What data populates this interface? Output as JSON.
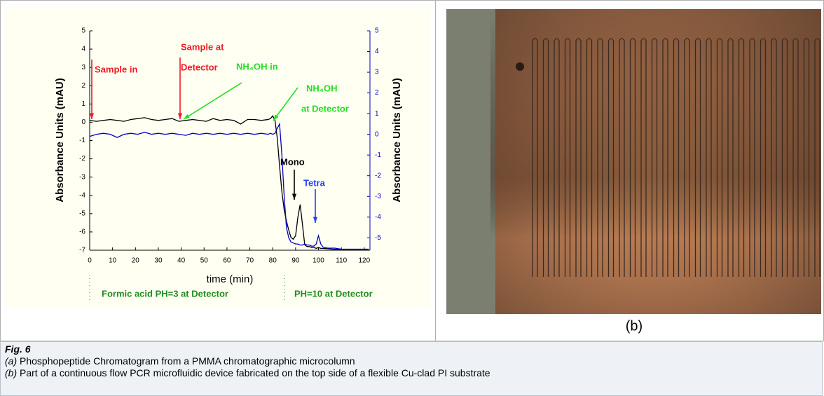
{
  "chart_data": {
    "type": "line",
    "x_label": "time (min)",
    "y_label": "Absorbance Units (mAU)",
    "y2_label": "Absorbance Units (mAU)",
    "x": [
      0,
      3,
      6,
      9,
      12,
      15,
      18,
      21,
      24,
      27,
      30,
      33,
      36,
      39,
      42,
      45,
      48,
      51,
      54,
      57,
      60,
      63,
      66,
      69,
      72,
      75,
      78,
      79,
      80,
      81,
      82,
      83,
      84,
      85,
      86,
      87,
      88,
      89,
      90,
      91,
      92,
      93,
      94,
      95,
      96,
      97,
      98,
      99,
      100,
      101,
      102,
      104,
      107,
      110,
      113,
      116,
      119,
      122
    ],
    "series": [
      {
        "color": "#000000",
        "values": [
          0.1,
          0.05,
          0.1,
          0.15,
          0.1,
          0.05,
          0.15,
          0.2,
          0.25,
          0.15,
          0.1,
          0.15,
          0.2,
          0.05,
          0.1,
          0.15,
          0.1,
          0.05,
          0.2,
          0.1,
          0.15,
          0.1,
          -0.1,
          0.15,
          0.15,
          0.1,
          0.15,
          0.2,
          0.35,
          0.1,
          -0.9,
          -2.4,
          -3.8,
          -4.8,
          -5.4,
          -5.9,
          -6.3,
          -6.4,
          -6.2,
          -5.2,
          -4.5,
          -5.6,
          -6.7,
          -6.8,
          -6.8,
          -6.85,
          -6.85,
          -6.9,
          -6.85,
          -6.9,
          -6.9,
          -6.92,
          -6.95,
          -6.95,
          -6.97,
          -6.97,
          -6.98,
          -6.98
        ]
      },
      {
        "color": "#0000cc",
        "axis": "y2",
        "values": [
          -0.1,
          0.0,
          0.05,
          0.0,
          -0.15,
          0.0,
          0.05,
          0.0,
          0.1,
          0.0,
          0.05,
          0.0,
          0.05,
          0.0,
          -0.05,
          0.05,
          0.0,
          0.05,
          0.0,
          0.05,
          0.0,
          0.05,
          0.0,
          0.05,
          0.0,
          0.05,
          0.0,
          0.05,
          0.0,
          0.05,
          0.3,
          0.5,
          -1.0,
          -3.0,
          -4.5,
          -5.0,
          -5.2,
          -5.25,
          -5.3,
          -5.3,
          -5.35,
          -5.35,
          -5.3,
          -5.35,
          -5.35,
          -5.4,
          -5.4,
          -5.3,
          -4.9,
          -5.3,
          -5.45,
          -5.5,
          -5.5,
          -5.55,
          -5.55,
          -5.55,
          -5.55,
          -5.55
        ]
      }
    ],
    "xlim": [
      0,
      122.5
    ],
    "xticks": [
      0,
      10,
      20,
      30,
      40,
      50,
      60,
      70,
      80,
      90,
      100,
      110,
      120
    ],
    "ylim": [
      -7,
      5
    ],
    "yticks": [
      -7,
      -6,
      -5,
      -4,
      -3,
      -2,
      -1,
      0,
      1,
      2,
      3,
      4,
      5
    ],
    "y2lim": [
      -5.6,
      5
    ],
    "y2ticks": [
      -5,
      -4,
      -3,
      -2,
      -1,
      0,
      1,
      2,
      3,
      4,
      5
    ],
    "grid": false,
    "annotations": [
      {
        "text": "Sample in",
        "color": "#ee1c24"
      },
      {
        "text": "Sample at",
        "color": "#ee1c24"
      },
      {
        "text": "Detector",
        "color": "#ee1c24"
      },
      {
        "text": "NH₄OH in",
        "color": "#22dd22"
      },
      {
        "text": "NH₄OH",
        "color": "#22dd22"
      },
      {
        "text": "at Detector",
        "color": "#22dd22"
      },
      {
        "text": "Mono",
        "color": "#000000"
      },
      {
        "text": "Tetra",
        "color": "#1f3fff"
      },
      {
        "text": "Formic acid PH=3 at Detector",
        "color": "#1e8c1e"
      },
      {
        "text": "PH=10 at Detector",
        "color": "#1e8c1e"
      }
    ]
  },
  "photo_label": "(b)",
  "caption": {
    "figure": "Fig. 6",
    "a_label": "(a)",
    "a_text": "Phosphopeptide Chromatogram from a PMMA chromatographic microcolumn",
    "b_label": "(b)",
    "b_text": "Part of a continuous flow PCR microfluidic device fabricated on the top side of a flexible Cu-clad PI substrate"
  }
}
